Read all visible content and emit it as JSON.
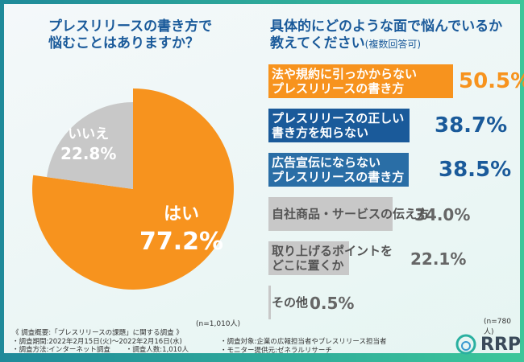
{
  "left_question": [
    "プレスリリースの書き方で",
    "悩むことはありますか？"
  ],
  "right_question": [
    "具体的にどのような面で悩んでいるか",
    "教えてください"
  ],
  "right_question_note": "(複数回答可)",
  "chart_data": [
    {
      "type": "pie",
      "slices": [
        {
          "label": "はい",
          "value": 77.2,
          "display": "77.2%",
          "color": "#f7931e"
        },
        {
          "label": "いいえ",
          "value": 22.8,
          "display": "22.8%",
          "color": "#c8c8c8"
        }
      ],
      "n": "(n=1,010人)"
    },
    {
      "type": "bar",
      "orientation": "horizontal",
      "categories": [
        [
          "法や規約に引っかからない",
          "プレスリリースの書き方"
        ],
        [
          "プレスリリースの正しい",
          "書き方を知らない"
        ],
        [
          "広告宣伝にならない",
          "プレスリリースの書き方"
        ],
        [
          "自社商品・サービスの伝え方"
        ],
        [
          "取り上げるポイントを",
          "どこに置くか"
        ],
        [
          "その他"
        ]
      ],
      "values": [
        50.5,
        38.7,
        38.5,
        34.0,
        22.1,
        0.5
      ],
      "labels": [
        "50.5%",
        "38.7%",
        "38.5%",
        "34.0%",
        "22.1%",
        "0.5%"
      ],
      "colors": [
        "#f7931e",
        "#1a5a9a",
        "#2a6ea6",
        "#c8c8c8",
        "#c8c8c8",
        "#c8c8c8"
      ],
      "n": "(n=780人)"
    }
  ],
  "footer": {
    "title": "《 調査概要:「プレスリリースの課題」に関する調査 》",
    "period": "・調査期間:2022年2月15日(火)～2022年2月16日(水)",
    "method": "・調査方法:インターネット調査",
    "count": "・調査人数:1,010人",
    "target": "・調査対象:企業の広報担当者やプレスリリース担当者",
    "provider": "・モニター提供元:ゼネラルリサーチ"
  },
  "logo": "RRP"
}
